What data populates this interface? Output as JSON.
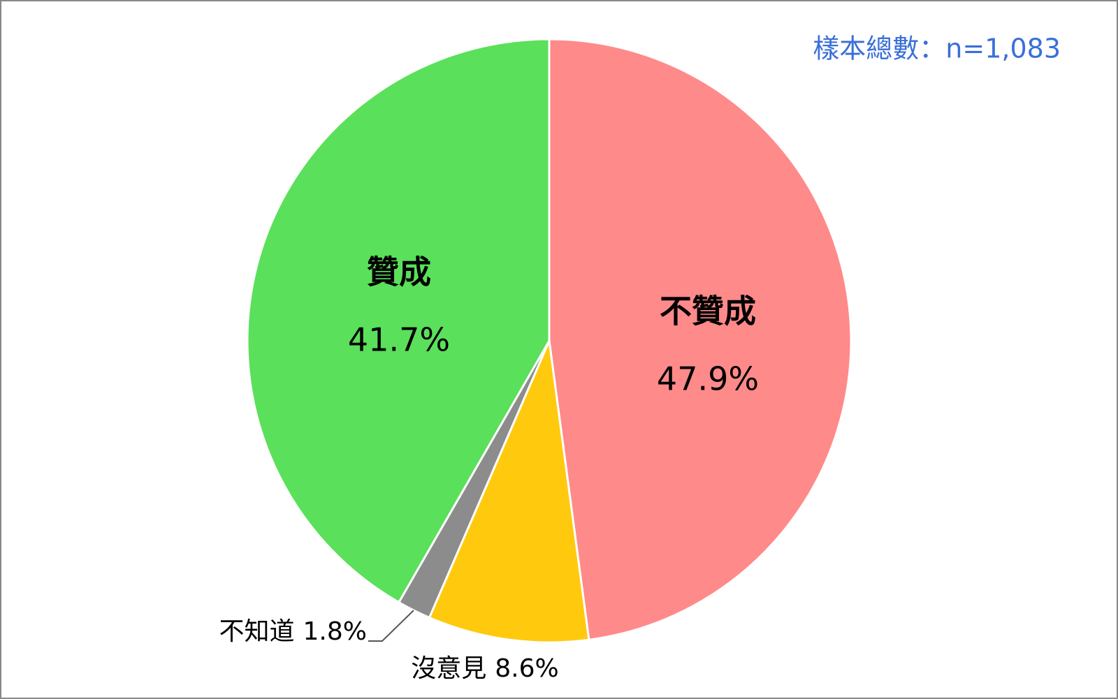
{
  "chart_data": {
    "type": "pie",
    "annotation": "樣本總數：n=1,083",
    "categories": [
      "不贊成",
      "沒意見",
      "不知道",
      "贊成"
    ],
    "values": [
      47.9,
      8.6,
      1.8,
      41.7
    ],
    "value_labels": [
      "47.9%",
      "8.6%",
      "1.8%",
      "41.7%"
    ],
    "colors": [
      "#ff8a8a",
      "#ffc90e",
      "#8c8c8c",
      "#5ae05a"
    ]
  }
}
